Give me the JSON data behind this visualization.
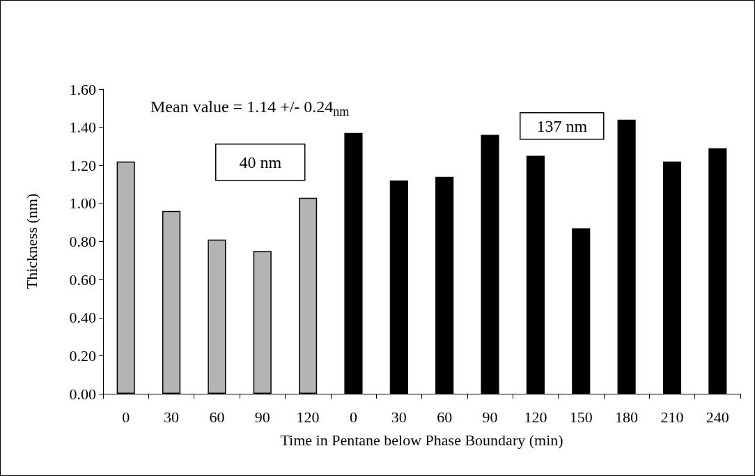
{
  "chart_data": {
    "type": "bar",
    "xlabel": "Time in Pentane below Phase Boundary (min)",
    "ylabel": "Thickness (nm)",
    "categories": [
      "0",
      "30",
      "60",
      "90",
      "120",
      "0",
      "30",
      "60",
      "90",
      "120",
      "150",
      "180",
      "210",
      "240"
    ],
    "values": [
      1.22,
      0.96,
      0.81,
      0.75,
      1.03,
      1.37,
      1.12,
      1.14,
      1.36,
      1.25,
      0.87,
      1.44,
      1.22,
      1.29
    ],
    "colors": [
      "#b4b4b4",
      "#b4b4b4",
      "#b4b4b4",
      "#b4b4b4",
      "#b4b4b4",
      "#000000",
      "#000000",
      "#000000",
      "#000000",
      "#000000",
      "#000000",
      "#000000",
      "#000000",
      "#000000"
    ],
    "ylim": [
      0,
      1.6
    ],
    "yticks": [
      {
        "value": 0,
        "label": "0.00"
      },
      {
        "value": 0.2,
        "label": "0.20"
      },
      {
        "value": 0.4,
        "label": "0.40"
      },
      {
        "value": 0.6,
        "label": "0.60"
      },
      {
        "value": 0.8,
        "label": "0.80"
      },
      {
        "value": 1.0,
        "label": "1.00"
      },
      {
        "value": 1.2,
        "label": "1.20"
      },
      {
        "value": 1.4,
        "label": "1.40"
      },
      {
        "value": 1.6,
        "label": "1.60"
      }
    ],
    "grid": false,
    "annotations": [
      "Mean value = 1.14 +/- 0.24$_{nm}$",
      "40 nm",
      "137 nm"
    ]
  }
}
